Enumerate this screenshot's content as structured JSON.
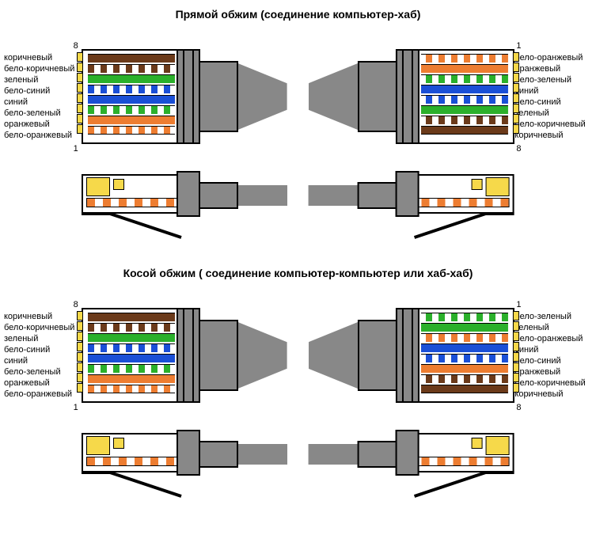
{
  "colors": {
    "brown": "#6b3a1a",
    "green": "#2bb02b",
    "blue": "#1a4fd6",
    "orange": "#ed7d31",
    "white": "#ffffff",
    "pin_gold": "#f6d94a",
    "cable_grey": "#888888",
    "outline": "#000000"
  },
  "wire_label_fontsize": 11,
  "title_fontsize": 14,
  "sections": [
    {
      "title": "Прямой обжим (соединение компьютер-хаб)",
      "left_pin_top": "8",
      "left_pin_bottom": "1",
      "right_pin_top": "1",
      "right_pin_bottom": "8",
      "left_labels": [
        "коричневый",
        "бело-коричневый",
        "зеленый",
        "бело-синий",
        "синий",
        "бело-зеленый",
        "оранжевый",
        "бело-оранжевый"
      ],
      "right_labels": [
        "бело-оранжевый",
        "оранжевый",
        "бело-зеленый",
        "синий",
        "бело-синий",
        "зеленый",
        "бело-коричневый",
        "коричневый"
      ],
      "left_wires": [
        {
          "style": "solid",
          "color": "brown"
        },
        {
          "style": "striped",
          "color": "brown"
        },
        {
          "style": "solid",
          "color": "green"
        },
        {
          "style": "striped",
          "color": "blue"
        },
        {
          "style": "solid",
          "color": "blue"
        },
        {
          "style": "striped",
          "color": "green"
        },
        {
          "style": "solid",
          "color": "orange"
        },
        {
          "style": "striped",
          "color": "orange"
        }
      ],
      "right_wires": [
        {
          "style": "striped",
          "color": "orange"
        },
        {
          "style": "solid",
          "color": "orange"
        },
        {
          "style": "striped",
          "color": "green"
        },
        {
          "style": "solid",
          "color": "blue"
        },
        {
          "style": "striped",
          "color": "blue"
        },
        {
          "style": "solid",
          "color": "green"
        },
        {
          "style": "striped",
          "color": "brown"
        },
        {
          "style": "solid",
          "color": "brown"
        }
      ]
    },
    {
      "title": "Косой обжим ( соединение компьютер-компьютер или хаб-хаб)",
      "left_pin_top": "8",
      "left_pin_bottom": "1",
      "right_pin_top": "1",
      "right_pin_bottom": "8",
      "left_labels": [
        "коричневый",
        "бело-коричневый",
        "зеленый",
        "бело-синий",
        "синий",
        "бело-зеленый",
        "оранжевый",
        "бело-оранжевый"
      ],
      "right_labels": [
        "бело-зеленый",
        "зеленый",
        "бело-оранжевый",
        "синий",
        "бело-синий",
        "оранжевый",
        "бело-коричневый",
        "коричневый"
      ],
      "left_wires": [
        {
          "style": "solid",
          "color": "brown"
        },
        {
          "style": "striped",
          "color": "brown"
        },
        {
          "style": "solid",
          "color": "green"
        },
        {
          "style": "striped",
          "color": "blue"
        },
        {
          "style": "solid",
          "color": "blue"
        },
        {
          "style": "striped",
          "color": "green"
        },
        {
          "style": "solid",
          "color": "orange"
        },
        {
          "style": "striped",
          "color": "orange"
        }
      ],
      "right_wires": [
        {
          "style": "striped",
          "color": "green"
        },
        {
          "style": "solid",
          "color": "green"
        },
        {
          "style": "striped",
          "color": "orange"
        },
        {
          "style": "solid",
          "color": "blue"
        },
        {
          "style": "striped",
          "color": "blue"
        },
        {
          "style": "solid",
          "color": "orange"
        },
        {
          "style": "striped",
          "color": "brown"
        },
        {
          "style": "solid",
          "color": "brown"
        }
      ]
    }
  ]
}
